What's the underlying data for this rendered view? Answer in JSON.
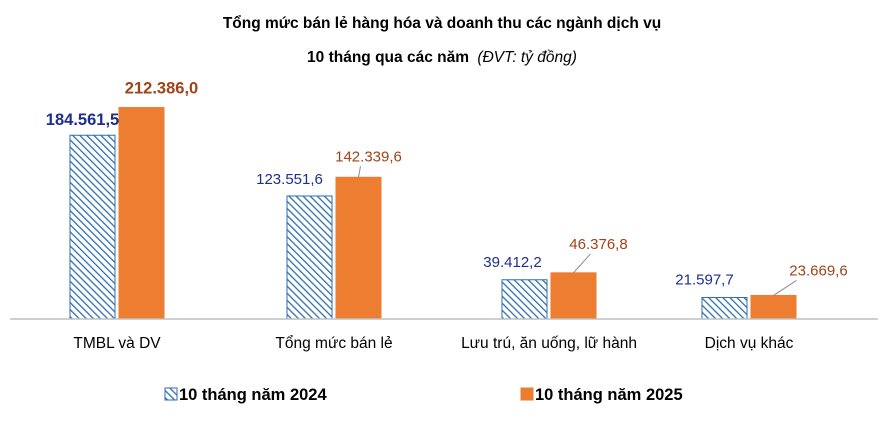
{
  "chart_data": {
    "type": "bar",
    "title_line1": "Tổng mức bán lẻ hàng hóa và doanh thu các ngành dịch vụ",
    "title_line2_main": "10 tháng qua các năm",
    "title_line2_unit": "(ĐVT: tỷ đồng)",
    "categories": [
      "TMBL và DV",
      "Tổng mức bán lẻ",
      "Lưu trú, ăn uống, lữ hành",
      "Dịch vụ khác"
    ],
    "series": [
      {
        "name": "10 tháng năm 2024",
        "values": [
          184561.5,
          123551.6,
          39412.2,
          21597.7
        ],
        "labels": [
          "184.561,5",
          "123.551,6",
          "39.412,2",
          "21.597,7"
        ],
        "color": "#1f3a93",
        "pattern": "diagonal-hatch"
      },
      {
        "name": "10 tháng năm 2025",
        "values": [
          212386.0,
          142339.6,
          46376.8,
          23669.6
        ],
        "labels": [
          "212.386,0",
          "142.339,6",
          "46.376,8",
          "23.669,6"
        ],
        "color": "#ed7d31",
        "label_color": "#a0431a"
      }
    ],
    "ylim": [
      0,
      230000
    ],
    "grid": false,
    "legend_position": "bottom"
  }
}
